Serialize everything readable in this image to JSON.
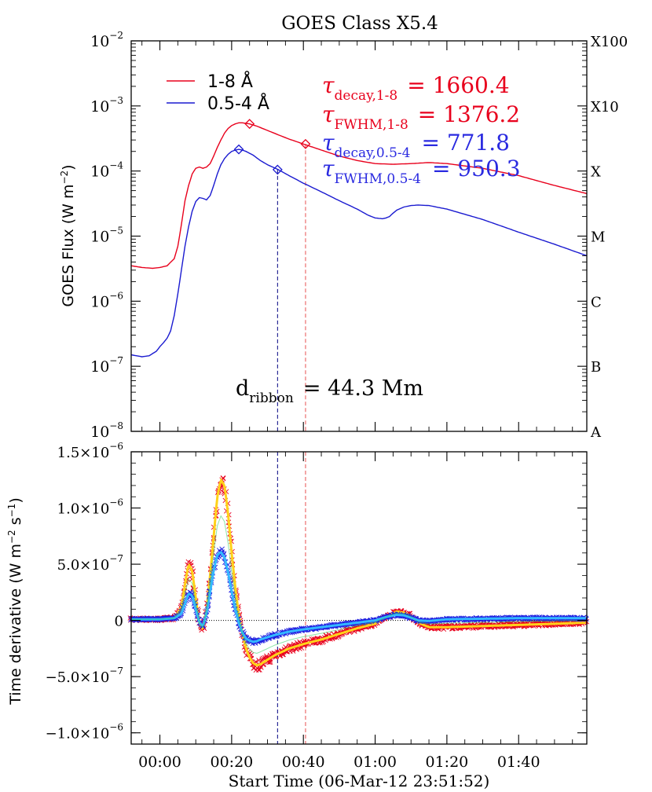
{
  "chart_data": [
    {
      "type": "line",
      "title": "GOES Class X5.4",
      "ylabel": "GOES Flux (W m⁻²)",
      "yscale": "log",
      "ylim": [
        1e-08,
        0.01
      ],
      "xlim_minutes": [
        -8,
        119
      ],
      "x_ticks": [
        "00:00",
        "00:20",
        "00:40",
        "01:00",
        "01:20",
        "01:40"
      ],
      "y_ticks": [
        "10⁻⁸",
        "10⁻⁷",
        "10⁻⁶",
        "10⁻⁵",
        "10⁻⁴",
        "10⁻³",
        "10⁻²"
      ],
      "right_axis_labels": [
        "A",
        "B",
        "C",
        "M",
        "X",
        "X10",
        "X100"
      ],
      "legend": {
        "placement": "top-left",
        "entries": [
          {
            "label": "1-8 Å",
            "color": "#e8001c"
          },
          {
            "label": "0.5-4 Å",
            "color": "#1a1ad0"
          }
        ]
      },
      "annotations": {
        "tau_decay_18_label": "τdecay,1-8 = 1660.4",
        "tau_decay_18_sym": "τ",
        "tau_decay_18_sub": "decay,1-8",
        "tau_decay_18_val": "= 1660.4",
        "tau_fwhm_18_sym": "τ",
        "tau_fwhm_18_sub": "FWHM,1-8",
        "tau_fwhm_18_val": "= 1376.2",
        "tau_decay_054_sym": "τ",
        "tau_decay_054_sub": "decay,0.5-4",
        "tau_decay_054_val": "= 771.8",
        "tau_fwhm_054_sym": "τ",
        "tau_fwhm_054_sub": "FWHM,0.5-4",
        "tau_fwhm_054_val": "= 950.3",
        "dribbon_main": "d",
        "dribbon_sub": "ribbon",
        "dribbon_val": "= 44.3 Mm"
      },
      "vertical_markers_minutes": [
        {
          "x": 32.8,
          "color": "#000080"
        },
        {
          "x": 40.6,
          "color": "#e85050"
        }
      ],
      "series": [
        {
          "name": "1-8 Å",
          "color": "#e8001c",
          "x": [
            -8,
            -5,
            -2,
            0,
            2,
            4,
            5,
            6,
            7,
            8,
            9,
            10,
            11,
            12,
            13,
            14,
            15,
            16,
            17,
            18,
            19,
            20,
            21,
            22,
            23,
            24,
            25,
            27,
            30,
            33,
            36,
            40,
            45,
            50,
            55,
            60,
            65,
            70,
            75,
            80,
            90,
            100,
            110,
            119
          ],
          "y": [
            3.5e-06,
            3.3e-06,
            3.2e-06,
            3.3e-06,
            3.5e-06,
            4.5e-06,
            7e-06,
            1.5e-05,
            3.5e-05,
            6e-05,
            9e-05,
            0.00011,
            0.000115,
            0.00011,
            0.000115,
            0.00013,
            0.00017,
            0.00023,
            0.0003,
            0.00038,
            0.00045,
            0.0005,
            0.00053,
            0.00055,
            0.00055,
            0.00054,
            0.00053,
            0.00049,
            0.00042,
            0.00036,
            0.00031,
            0.00026,
            0.00021,
            0.00017,
            0.000145,
            0.00013,
            0.000127,
            0.00013,
            0.000135,
            0.00013,
            0.00011,
            8.5e-05,
            6e-05,
            4.5e-05
          ]
        },
        {
          "name": "0.5-4 Å",
          "color": "#1a1ad0",
          "x": [
            -8,
            -5,
            -3,
            -1,
            0,
            1,
            2,
            3,
            4,
            5,
            6,
            7,
            8,
            9,
            10,
            11,
            12,
            13,
            14,
            15,
            16,
            17,
            18,
            19,
            20,
            21,
            22,
            23,
            24,
            26,
            28,
            30,
            33,
            36,
            40,
            45,
            50,
            55,
            58,
            60,
            62,
            63,
            64,
            65,
            66,
            68,
            70,
            72,
            75,
            80,
            90,
            100,
            110,
            119
          ],
          "y": [
            1.5e-07,
            1.4e-07,
            1.45e-07,
            1.7e-07,
            2e-07,
            2.3e-07,
            2.7e-07,
            3.5e-07,
            6e-07,
            1.3e-06,
            3e-06,
            7e-06,
            1.4e-05,
            2.4e-05,
            3.4e-05,
            3.9e-05,
            3.8e-05,
            3.6e-05,
            4.2e-05,
            6e-05,
            9e-05,
            0.000125,
            0.000155,
            0.00018,
            0.0002,
            0.00021,
            0.000215,
            0.00021,
            0.0002,
            0.000175,
            0.000145,
            0.000125,
            0.000105,
            8.5e-05,
            6.5e-05,
            4.8e-05,
            3.5e-05,
            2.6e-05,
            2.1e-05,
            1.9e-05,
            1.85e-05,
            1.9e-05,
            2e-05,
            2.25e-05,
            2.5e-05,
            2.8e-05,
            2.95e-05,
            3e-05,
            2.95e-05,
            2.6e-05,
            1.8e-05,
            1.15e-05,
            7.5e-06,
            5e-06
          ]
        }
      ],
      "markers": [
        {
          "series": "1-8 Å",
          "x": 25,
          "y": 0.00053
        },
        {
          "series": "1-8 Å",
          "x": 40.6,
          "y": 0.00026
        },
        {
          "series": "0.5-4 Å",
          "x": 22,
          "y": 0.000215
        },
        {
          "series": "0.5-4 Å",
          "x": 32.8,
          "y": 0.000105
        }
      ]
    },
    {
      "type": "scatter",
      "xlabel": "Start Time (06-Mar-12 23:51:52)",
      "ylabel": "Time derivative (W m⁻² s⁻¹)",
      "ylim": [
        -1.1e-06,
        1.5e-06
      ],
      "x_ticks": [
        "00:00",
        "00:20",
        "00:40",
        "01:00",
        "01:20",
        "01:40"
      ],
      "y_ticks": [
        {
          "value": 1.5e-06,
          "mant": "1.5×10",
          "exp": "-6"
        },
        {
          "value": 1e-06,
          "mant": "1.0×10",
          "exp": "-6"
        },
        {
          "value": 5e-07,
          "mant": "5.0×10",
          "exp": "-7"
        },
        {
          "value": 0,
          "mant": "0",
          "exp": ""
        },
        {
          "value": -5e-07,
          "mant": "−5.0×10",
          "exp": "-7"
        },
        {
          "value": -1e-06,
          "mant": "−1.0×10",
          "exp": "-6"
        }
      ],
      "zero_line": true,
      "series": [
        {
          "name": "1-8 Å",
          "color": "#e8001c",
          "x": [
            -8,
            0,
            4,
            6,
            7,
            8,
            9,
            10,
            11,
            12,
            13,
            14,
            15,
            16,
            17,
            18,
            19,
            20,
            21,
            22,
            23,
            24,
            25,
            26,
            27,
            28,
            30,
            32,
            34,
            36,
            40,
            45,
            50,
            55,
            60,
            63,
            66,
            68,
            70,
            72,
            75,
            80,
            90,
            100,
            110,
            119
          ],
          "y": [
            1e-08,
            1e-08,
            2e-08,
            1.2e-07,
            3.2e-07,
            5e-07,
            4.4e-07,
            2e-07,
            -3e-08,
            -8e-08,
            1e-07,
            4e-07,
            7.5e-07,
            1.1e-06,
            1.25e-06,
            1.2e-06,
            9.5e-07,
            6e-07,
            3e-07,
            5e-08,
            -1.2e-07,
            -2.5e-07,
            -3.3e-07,
            -3.8e-07,
            -4e-07,
            -3.9e-07,
            -3.5e-07,
            -3.1e-07,
            -2.8e-07,
            -2.5e-07,
            -2.1e-07,
            -1.7e-07,
            -1.2e-07,
            -7e-08,
            -3e-08,
            3e-08,
            8e-08,
            7e-08,
            4e-08,
            -2e-08,
            -6e-08,
            -6e-08,
            -5e-08,
            -4e-08,
            -3e-08,
            -2e-08
          ]
        },
        {
          "name": "0.5-4 Å",
          "color": "#2020e0",
          "x": [
            -8,
            0,
            4,
            6,
            7,
            8,
            9,
            10,
            11,
            12,
            13,
            14,
            15,
            16,
            17,
            18,
            19,
            20,
            21,
            22,
            23,
            24,
            25,
            26,
            27,
            28,
            30,
            32,
            34,
            36,
            40,
            45,
            50,
            55,
            60,
            63,
            66,
            68,
            70,
            72,
            75,
            80,
            90,
            100,
            110,
            119
          ],
          "y": [
            1e-08,
            1e-08,
            2e-08,
            6e-08,
            1.5e-07,
            2.4e-07,
            2.2e-07,
            1e-07,
            -2e-08,
            -5e-08,
            6e-08,
            2.5e-07,
            4.5e-07,
            5.8e-07,
            6.1e-07,
            5.6e-07,
            4.3e-07,
            2.6e-07,
            1e-07,
            -2e-08,
            -1.1e-07,
            -1.6e-07,
            -1.8e-07,
            -1.9e-07,
            -1.85e-07,
            -1.7e-07,
            -1.5e-07,
            -1.3e-07,
            -1.15e-07,
            -1e-07,
            -8e-08,
            -6e-08,
            -4e-08,
            -2e-08,
            0,
            3e-08,
            5e-08,
            4.5e-08,
            2.5e-08,
            0,
            -5e-09,
            1e-08,
            1.5e-08,
            2e-08,
            2e-08,
            2e-08
          ]
        }
      ],
      "vertical_markers_minutes": [
        {
          "x": 32.8,
          "color": "#000080"
        },
        {
          "x": 40.6,
          "color": "#e85050"
        }
      ]
    }
  ]
}
